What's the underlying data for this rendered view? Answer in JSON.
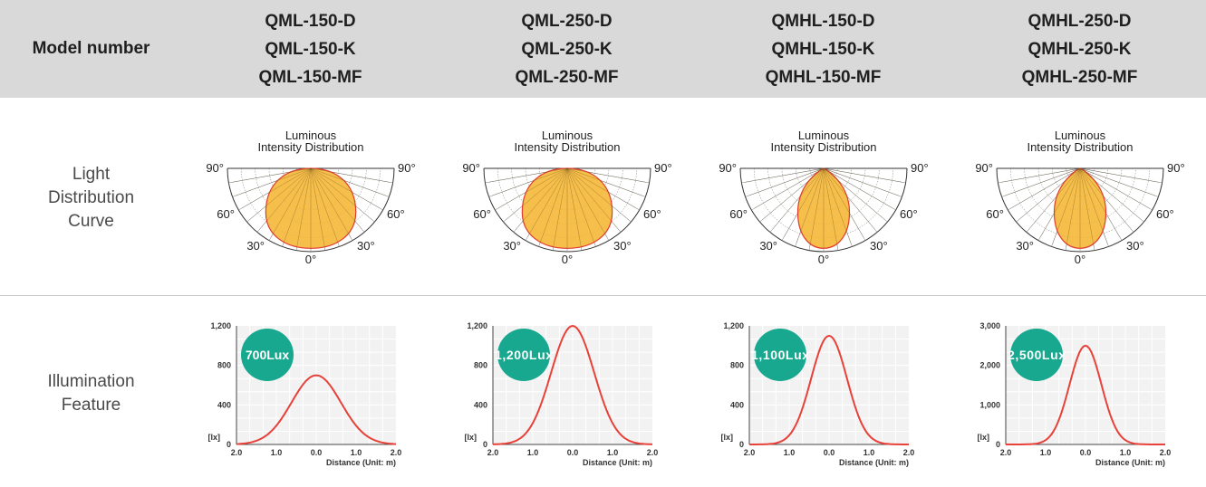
{
  "table": {
    "header_label": "Model number",
    "row_labels": {
      "light_distribution": [
        "Light",
        "Distribution",
        "Curve"
      ],
      "illumination": [
        "Illumination",
        "Feature"
      ]
    },
    "models": [
      [
        "QML-150-D",
        "QML-150-K",
        "QML-150-MF"
      ],
      [
        "QML-250-D",
        "QML-250-K",
        "QML-250-MF"
      ],
      [
        "QMHL-150-D",
        "QMHL-150-K",
        "QMHL-150-MF"
      ],
      [
        "QMHL-250-D",
        "QMHL-250-K",
        "QMHL-250-MF"
      ]
    ]
  },
  "colors": {
    "header_bg": "#d9d9d9",
    "polar_fill": "#f5b532",
    "polar_outline": "#e23b2e",
    "curve_line": "#e8413a",
    "badge": "#17a88f",
    "badge_text": "#ffffff"
  },
  "chart_data": [
    {
      "type": "polar",
      "title": "Luminous Intensity Distribution",
      "angle_labels": [
        "90°",
        "90°",
        "60°",
        "60°",
        "30°",
        "30°",
        "0°"
      ],
      "beam": "wide",
      "beam_width_ratio": 0.54,
      "beam_depth_ratio": 0.96
    },
    {
      "type": "polar",
      "title": "Luminous Intensity Distribution",
      "angle_labels": [
        "90°",
        "90°",
        "60°",
        "60°",
        "30°",
        "30°",
        "0°"
      ],
      "beam": "wide",
      "beam_width_ratio": 0.54,
      "beam_depth_ratio": 0.96
    },
    {
      "type": "polar",
      "title": "Luminous Intensity Distribution",
      "angle_labels": [
        "90°",
        "90°",
        "60°",
        "60°",
        "30°",
        "30°",
        "0°"
      ],
      "beam": "narrow",
      "beam_width_ratio": 0.31,
      "beam_depth_ratio": 0.96
    },
    {
      "type": "polar",
      "title": "Luminous Intensity Distribution",
      "angle_labels": [
        "90°",
        "90°",
        "60°",
        "60°",
        "30°",
        "30°",
        "0°"
      ],
      "beam": "narrow",
      "beam_width_ratio": 0.31,
      "beam_depth_ratio": 0.96
    },
    {
      "type": "line",
      "badge": "700Lux",
      "peak": 700,
      "spread": 0.62,
      "ylim": [
        0,
        1200
      ],
      "ytick_values": [
        0,
        400,
        800,
        1200
      ],
      "ytick_labels": [
        "0",
        "400",
        "800",
        "1,200"
      ],
      "xlim": [
        -2,
        2
      ],
      "xtick_labels": [
        "2.0",
        "1.0",
        "0.0",
        "1.0",
        "2.0"
      ],
      "yunit": "[lx]",
      "xlabel": "Distance (Unit: m)"
    },
    {
      "type": "line",
      "badge": "1,200Lux",
      "peak": 1200,
      "spread": 0.54,
      "ylim": [
        0,
        1200
      ],
      "ytick_values": [
        0,
        400,
        800,
        1200
      ],
      "ytick_labels": [
        "0",
        "400",
        "800",
        "1,200"
      ],
      "xlim": [
        -2,
        2
      ],
      "xtick_labels": [
        "2.0",
        "1.0",
        "0.0",
        "1.0",
        "2.0"
      ],
      "yunit": "[lx]",
      "xlabel": "Distance (Unit: m)"
    },
    {
      "type": "line",
      "badge": "1,100Lux",
      "peak": 1100,
      "spread": 0.45,
      "ylim": [
        0,
        1200
      ],
      "ytick_values": [
        0,
        400,
        800,
        1200
      ],
      "ytick_labels": [
        "0",
        "400",
        "800",
        "1,200"
      ],
      "xlim": [
        -2,
        2
      ],
      "xtick_labels": [
        "2.0",
        "1.0",
        "0.0",
        "1.0",
        "2.0"
      ],
      "yunit": "[lx]",
      "xlabel": "Distance (Unit: m)"
    },
    {
      "type": "line",
      "badge": "2,500Lux",
      "peak": 2500,
      "spread": 0.4,
      "ylim": [
        0,
        3000
      ],
      "ytick_values": [
        0,
        1000,
        2000,
        3000
      ],
      "ytick_labels": [
        "0",
        "1,000",
        "2,000",
        "3,000"
      ],
      "xlim": [
        -2,
        2
      ],
      "xtick_labels": [
        "2.0",
        "1.0",
        "0.0",
        "1.0",
        "2.0"
      ],
      "yunit": "[lx]",
      "xlabel": "Distance (Unit: m)"
    }
  ]
}
